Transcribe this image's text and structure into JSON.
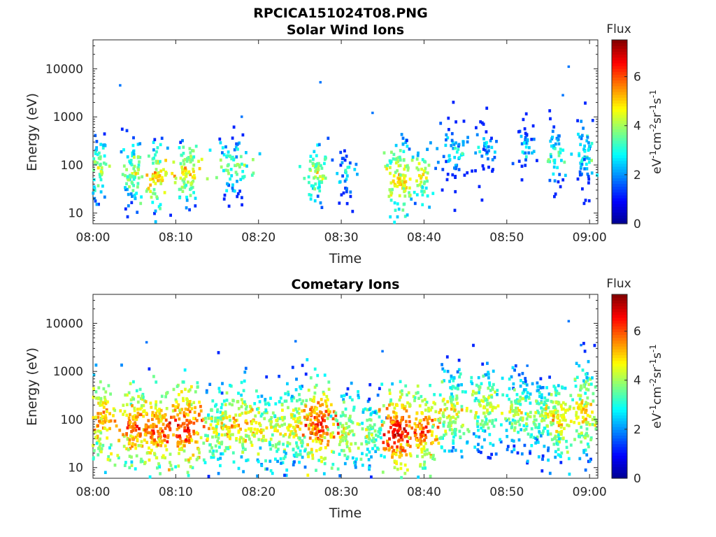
{
  "figure_title": "RPCICA151024T08.PNG",
  "colormap": [
    "#00008f",
    "#0000ff",
    "#0080ff",
    "#00ffff",
    "#80ff80",
    "#ffff00",
    "#ff8000",
    "#ff0000",
    "#800000"
  ],
  "chart_data": [
    {
      "type": "heatmap",
      "title": "Solar Wind Ions",
      "xlabel": "Time",
      "ylabel": "Energy (eV)",
      "x_ticks": [
        "08:00",
        "08:10",
        "08:20",
        "08:30",
        "08:40",
        "08:50",
        "09:00"
      ],
      "x_range_min": [
        0,
        61
      ],
      "y_scale": "log",
      "y_ticks": [
        "10",
        "100",
        "1000",
        "10000"
      ],
      "y_range": [
        6,
        40000
      ],
      "colorbar": {
        "title": "Flux",
        "unit_label": "eV-1cm-2sr-1s-1",
        "ticks": [
          "0",
          "2",
          "4",
          "6"
        ],
        "range": [
          0,
          7.5
        ]
      },
      "clusters": [
        {
          "t": 0.5,
          "e": 80,
          "n": 22,
          "spread_t": 0.6,
          "spread_e": 0.35,
          "flux": 4.2
        },
        {
          "t": 4.8,
          "e": 70,
          "n": 26,
          "spread_t": 0.6,
          "spread_e": 0.4,
          "flux": 4.0
        },
        {
          "t": 7.8,
          "e": 55,
          "n": 24,
          "spread_t": 0.6,
          "spread_e": 0.35,
          "flux": 5.0
        },
        {
          "t": 11.2,
          "e": 70,
          "n": 30,
          "spread_t": 0.8,
          "spread_e": 0.35,
          "flux": 4.8
        },
        {
          "t": 17.0,
          "e": 90,
          "n": 26,
          "spread_t": 1.0,
          "spread_e": 0.35,
          "flux": 3.8
        },
        {
          "t": 27.0,
          "e": 70,
          "n": 22,
          "spread_t": 0.7,
          "spread_e": 0.35,
          "flux": 4.2
        },
        {
          "t": 30.5,
          "e": 60,
          "n": 12,
          "spread_t": 0.6,
          "spread_e": 0.3,
          "flux": 3.0
        },
        {
          "t": 36.8,
          "e": 50,
          "n": 36,
          "spread_t": 0.8,
          "spread_e": 0.4,
          "flux": 5.0
        },
        {
          "t": 39.8,
          "e": 55,
          "n": 16,
          "spread_t": 0.6,
          "spread_e": 0.35,
          "flux": 4.5
        },
        {
          "t": 43.5,
          "e": 180,
          "n": 20,
          "spread_t": 0.8,
          "spread_e": 0.4,
          "flux": 2.8
        },
        {
          "t": 47.5,
          "e": 250,
          "n": 14,
          "spread_t": 0.6,
          "spread_e": 0.3,
          "flux": 2.5
        },
        {
          "t": 52.5,
          "e": 220,
          "n": 12,
          "spread_t": 0.6,
          "spread_e": 0.3,
          "flux": 2.5
        },
        {
          "t": 55.8,
          "e": 150,
          "n": 16,
          "spread_t": 0.5,
          "spread_e": 0.35,
          "flux": 3.5
        },
        {
          "t": 59.3,
          "e": 180,
          "n": 22,
          "spread_t": 0.6,
          "spread_e": 0.4,
          "flux": 3.0
        }
      ],
      "outliers": [
        [
          3.3,
          4500
        ],
        [
          27.5,
          5200
        ],
        [
          33.8,
          1200
        ],
        [
          57.5,
          11000
        ],
        [
          56.8,
          2800
        ],
        [
          18.0,
          1000
        ]
      ]
    },
    {
      "type": "heatmap",
      "title": "Cometary Ions",
      "xlabel": "Time",
      "ylabel": "Energy (eV)",
      "x_ticks": [
        "08:00",
        "08:10",
        "08:20",
        "08:30",
        "08:40",
        "08:50",
        "09:00"
      ],
      "x_range_min": [
        0,
        61
      ],
      "y_scale": "log",
      "y_ticks": [
        "10",
        "100",
        "1000",
        "10000"
      ],
      "y_range": [
        6,
        40000
      ],
      "colorbar": {
        "title": "Flux",
        "unit_label": "eV-1cm-2sr-1s-1",
        "ticks": [
          "0",
          "2",
          "4",
          "6"
        ],
        "range": [
          0,
          7.5
        ]
      },
      "clusters": [
        {
          "t": 0.8,
          "e": 90,
          "n": 40,
          "spread_t": 0.9,
          "spread_e": 0.45,
          "flux": 5.5
        },
        {
          "t": 4.8,
          "e": 70,
          "n": 45,
          "spread_t": 0.9,
          "spread_e": 0.45,
          "flux": 5.8
        },
        {
          "t": 7.8,
          "e": 60,
          "n": 45,
          "spread_t": 0.9,
          "spread_e": 0.45,
          "flux": 6.0
        },
        {
          "t": 11.3,
          "e": 70,
          "n": 50,
          "spread_t": 1.0,
          "spread_e": 0.45,
          "flux": 6.2
        },
        {
          "t": 14.8,
          "e": 60,
          "n": 35,
          "spread_t": 1.0,
          "spread_e": 0.45,
          "flux": 4.5
        },
        {
          "t": 18.0,
          "e": 80,
          "n": 45,
          "spread_t": 1.2,
          "spread_e": 0.45,
          "flux": 5.2
        },
        {
          "t": 21.5,
          "e": 60,
          "n": 35,
          "spread_t": 1.2,
          "spread_e": 0.45,
          "flux": 4.6
        },
        {
          "t": 24.5,
          "e": 80,
          "n": 40,
          "spread_t": 1.0,
          "spread_e": 0.45,
          "flux": 4.8
        },
        {
          "t": 27.3,
          "e": 80,
          "n": 50,
          "spread_t": 0.9,
          "spread_e": 0.45,
          "flux": 6.2
        },
        {
          "t": 30.8,
          "e": 50,
          "n": 35,
          "spread_t": 1.0,
          "spread_e": 0.45,
          "flux": 4.5
        },
        {
          "t": 33.8,
          "e": 50,
          "n": 25,
          "spread_t": 0.8,
          "spread_e": 0.4,
          "flux": 4.0
        },
        {
          "t": 36.8,
          "e": 50,
          "n": 55,
          "spread_t": 0.9,
          "spread_e": 0.45,
          "flux": 6.5
        },
        {
          "t": 40.0,
          "e": 60,
          "n": 40,
          "spread_t": 0.8,
          "spread_e": 0.45,
          "flux": 5.8
        },
        {
          "t": 43.5,
          "e": 150,
          "n": 45,
          "spread_t": 0.9,
          "spread_e": 0.5,
          "flux": 4.5
        },
        {
          "t": 47.3,
          "e": 180,
          "n": 40,
          "spread_t": 0.9,
          "spread_e": 0.45,
          "flux": 4.3
        },
        {
          "t": 51.0,
          "e": 150,
          "n": 35,
          "spread_t": 0.9,
          "spread_e": 0.45,
          "flux": 4.2
        },
        {
          "t": 54.0,
          "e": 120,
          "n": 35,
          "spread_t": 0.9,
          "spread_e": 0.45,
          "flux": 4.0
        },
        {
          "t": 56.3,
          "e": 90,
          "n": 40,
          "spread_t": 0.7,
          "spread_e": 0.45,
          "flux": 5.0
        },
        {
          "t": 59.5,
          "e": 150,
          "n": 40,
          "spread_t": 0.7,
          "spread_e": 0.5,
          "flux": 4.8
        }
      ],
      "outliers": [
        [
          6.5,
          4000
        ],
        [
          24.5,
          4200
        ],
        [
          35.0,
          2600
        ],
        [
          57.5,
          11000
        ],
        [
          59.0,
          3500
        ],
        [
          52.5,
          1300
        ]
      ]
    }
  ]
}
